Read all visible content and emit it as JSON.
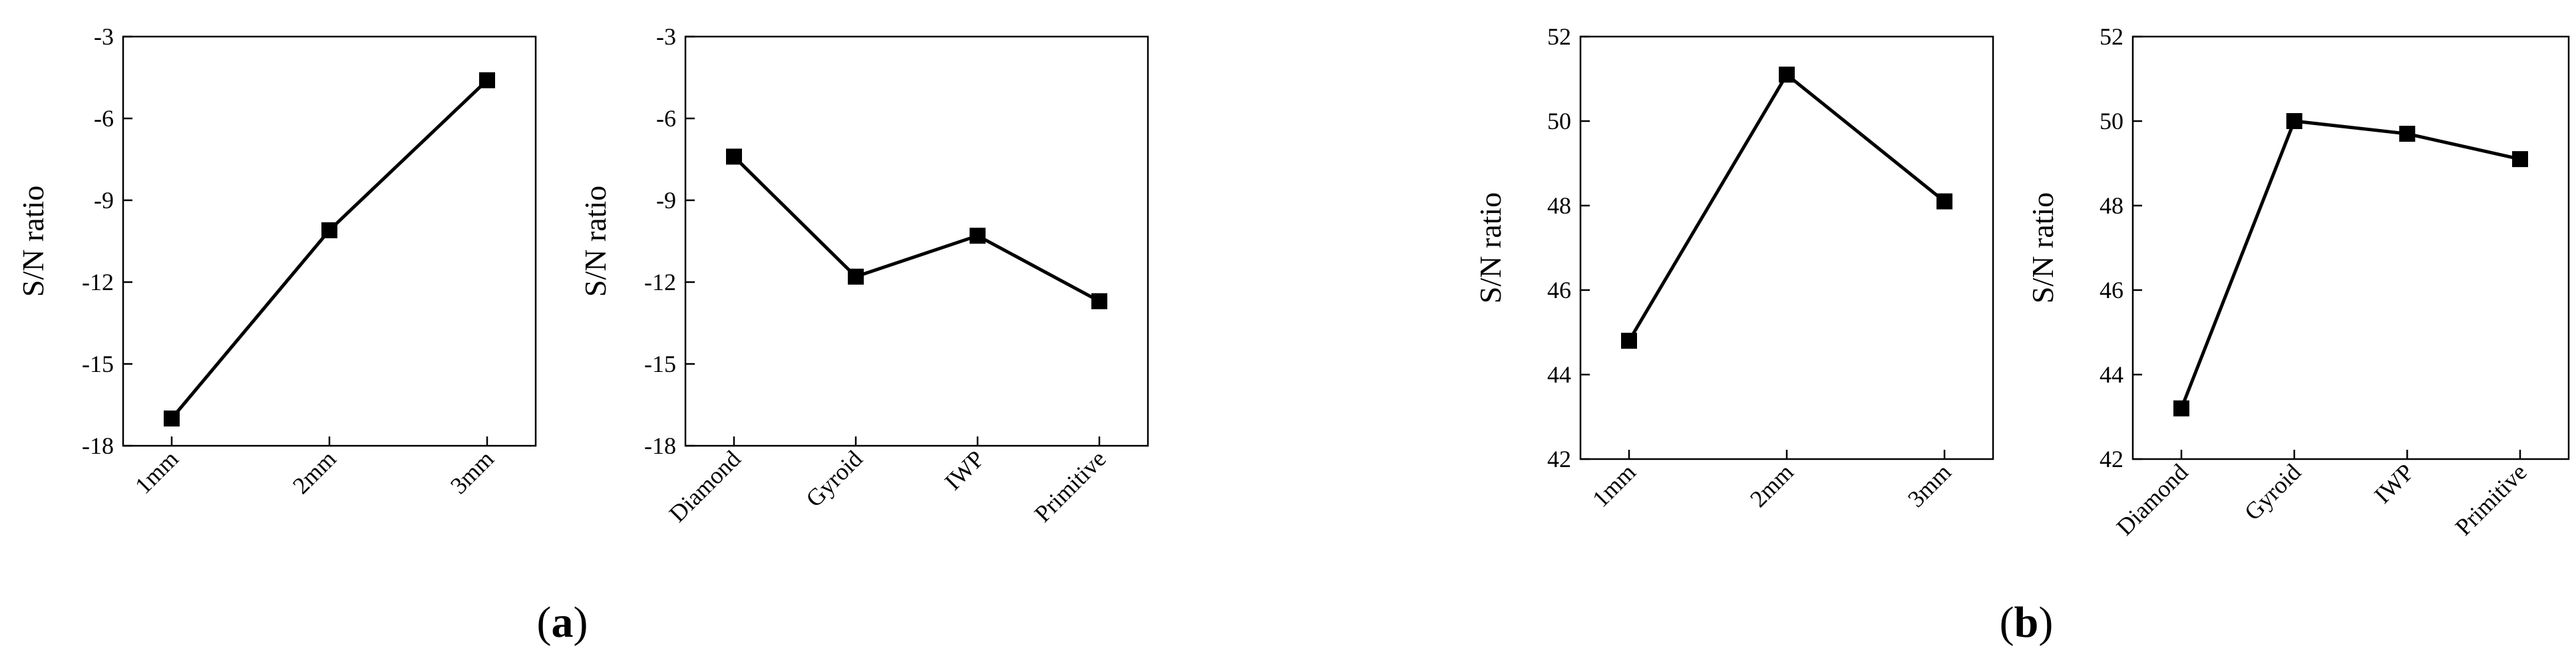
{
  "chart_data": [
    {
      "type": "line",
      "categories": [
        "1mm",
        "2mm",
        "3mm"
      ],
      "values": [
        -17.0,
        -10.1,
        -4.6
      ],
      "ylabel": "S/N ratio",
      "ylim": [
        -18,
        -3
      ],
      "yticks": [
        "-3",
        "-6",
        "-9",
        "-12",
        "-15",
        "-18"
      ],
      "marker": "square",
      "grid": false
    },
    {
      "type": "line",
      "categories": [
        "Diamond",
        "Gyroid",
        "IWP",
        "Primitive"
      ],
      "values": [
        -7.4,
        -11.8,
        -10.3,
        -12.7
      ],
      "ylabel": "S/N ratio",
      "ylim": [
        -18,
        -3
      ],
      "yticks": [
        "-3",
        "-6",
        "-9",
        "-12",
        "-15",
        "-18"
      ],
      "marker": "square",
      "grid": false
    },
    {
      "type": "line",
      "categories": [
        "1mm",
        "2mm",
        "3mm"
      ],
      "values": [
        44.8,
        51.1,
        48.1
      ],
      "ylabel": "S/N ratio",
      "ylim": [
        42,
        52
      ],
      "yticks": [
        "42",
        "44",
        "46",
        "48",
        "50",
        "52"
      ],
      "marker": "square",
      "grid": false
    },
    {
      "type": "line",
      "categories": [
        "Diamond",
        "Gyroid",
        "IWP",
        "Primitive"
      ],
      "values": [
        43.2,
        50.0,
        49.7,
        49.1
      ],
      "ylabel": "S/N ratio",
      "ylim": [
        42,
        52
      ],
      "yticks": [
        "42",
        "44",
        "46",
        "48",
        "50",
        "52"
      ],
      "marker": "square",
      "grid": false
    }
  ],
  "panel_labels": [
    {
      "open": "(",
      "letter": "a",
      "close": ")"
    },
    {
      "open": "(",
      "letter": "b",
      "close": ")"
    }
  ]
}
